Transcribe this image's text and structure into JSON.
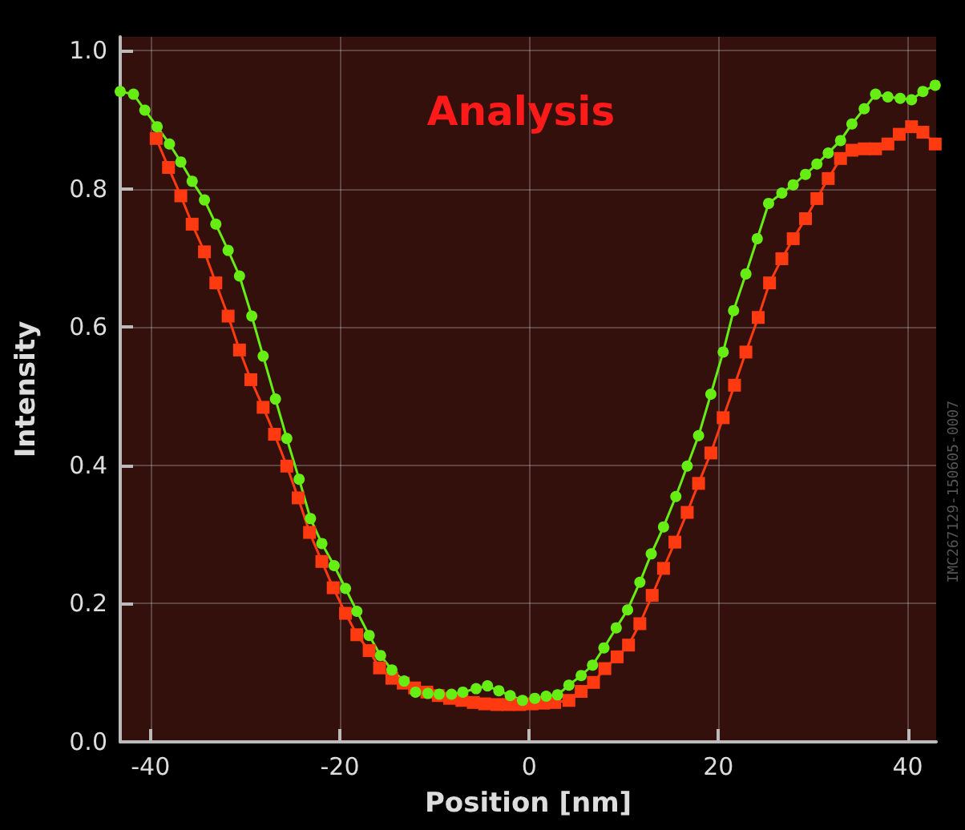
{
  "chart_data": {
    "type": "line",
    "title": "Analysis",
    "xlabel": "Position [nm]",
    "ylabel": "Intensity",
    "annotations": [
      "IMC267129-150605-0007"
    ],
    "xlim": [
      -43.2,
      43
    ],
    "xticks": [
      -40,
      -20,
      0,
      20,
      40
    ],
    "ylim": [
      0,
      1.02
    ],
    "yticks": [
      {
        "value": 0,
        "label": "0.0"
      },
      {
        "value": 0.2,
        "label": "0.2"
      },
      {
        "value": 0.4,
        "label": "0.4"
      },
      {
        "value": 0.6,
        "label": "0.6"
      },
      {
        "value": 0.8,
        "label": "0.8"
      },
      {
        "value": 1,
        "label": "1.0"
      }
    ],
    "grid": true,
    "line_style": "solid",
    "series": [
      {
        "color": "#ff3a10",
        "marker": "square",
        "x": [
          -39.4,
          -38.1,
          -36.8,
          -35.6,
          -34.3,
          -33.1,
          -31.8,
          -30.6,
          -29.4,
          -28.1,
          -26.9,
          -25.6,
          -24.4,
          -23.2,
          -21.9,
          -20.7,
          -19.4,
          -18.2,
          -16.9,
          -15.8,
          -14.5,
          -13.3,
          -12.1,
          -10.8,
          -9.6,
          -8.4,
          -7.1,
          -5.9,
          -4.7,
          -3.4,
          -2.2,
          -1.0,
          0.3,
          1.5,
          2.7,
          4.2,
          5.5,
          6.8,
          8.0,
          9.3,
          10.5,
          11.7,
          13.0,
          14.2,
          15.4,
          16.7,
          17.9,
          19.2,
          20.5,
          21.7,
          22.9,
          24.2,
          25.4,
          26.7,
          27.9,
          29.2,
          30.4,
          31.6,
          32.9,
          34.1,
          35.4,
          36.6,
          37.9,
          39.1,
          40.4,
          41.6,
          42.9
        ],
        "values": [
          0.873,
          0.831,
          0.79,
          0.749,
          0.709,
          0.664,
          0.616,
          0.567,
          0.524,
          0.484,
          0.445,
          0.399,
          0.353,
          0.303,
          0.261,
          0.223,
          0.186,
          0.155,
          0.132,
          0.107,
          0.092,
          0.085,
          0.078,
          0.072,
          0.067,
          0.063,
          0.06,
          0.057,
          0.055,
          0.054,
          0.054,
          0.054,
          0.055,
          0.056,
          0.057,
          0.06,
          0.073,
          0.086,
          0.106,
          0.123,
          0.14,
          0.171,
          0.212,
          0.251,
          0.289,
          0.332,
          0.374,
          0.418,
          0.469,
          0.516,
          0.564,
          0.614,
          0.664,
          0.699,
          0.728,
          0.757,
          0.786,
          0.815,
          0.844,
          0.856,
          0.858,
          0.858,
          0.865,
          0.879,
          0.89,
          0.882,
          0.865
        ]
      },
      {
        "color": "#66ee14",
        "marker": "circle",
        "x": [
          -43.2,
          -41.8,
          -40.6,
          -39.3,
          -38.0,
          -36.8,
          -35.6,
          -34.3,
          -33.1,
          -31.8,
          -30.6,
          -29.3,
          -28.1,
          -26.8,
          -25.6,
          -24.3,
          -23.1,
          -21.9,
          -20.6,
          -19.4,
          -18.2,
          -16.9,
          -15.7,
          -14.5,
          -13.2,
          -12.0,
          -10.7,
          -9.5,
          -8.2,
          -7.0,
          -5.6,
          -4.4,
          -3.2,
          -2.0,
          -0.7,
          0.6,
          1.8,
          3.0,
          4.2,
          5.5,
          6.7,
          7.9,
          9.2,
          10.4,
          11.7,
          12.9,
          14.2,
          15.5,
          16.7,
          17.9,
          19.2,
          20.5,
          21.6,
          22.9,
          24.1,
          25.3,
          26.7,
          27.9,
          29.2,
          30.4,
          31.6,
          32.9,
          34.1,
          35.4,
          36.6,
          37.9,
          39.2,
          40.4,
          41.6,
          42.9
        ],
        "values": [
          0.941,
          0.937,
          0.914,
          0.89,
          0.865,
          0.839,
          0.811,
          0.784,
          0.749,
          0.711,
          0.674,
          0.616,
          0.558,
          0.496,
          0.439,
          0.38,
          0.323,
          0.287,
          0.255,
          0.222,
          0.189,
          0.154,
          0.125,
          0.104,
          0.088,
          0.072,
          0.07,
          0.069,
          0.069,
          0.072,
          0.077,
          0.081,
          0.074,
          0.067,
          0.06,
          0.063,
          0.066,
          0.068,
          0.082,
          0.096,
          0.111,
          0.136,
          0.165,
          0.191,
          0.231,
          0.272,
          0.311,
          0.355,
          0.399,
          0.443,
          0.503,
          0.564,
          0.624,
          0.677,
          0.728,
          0.779,
          0.794,
          0.806,
          0.821,
          0.836,
          0.852,
          0.87,
          0.894,
          0.916,
          0.937,
          0.933,
          0.931,
          0.929,
          0.941,
          0.95
        ]
      }
    ]
  }
}
